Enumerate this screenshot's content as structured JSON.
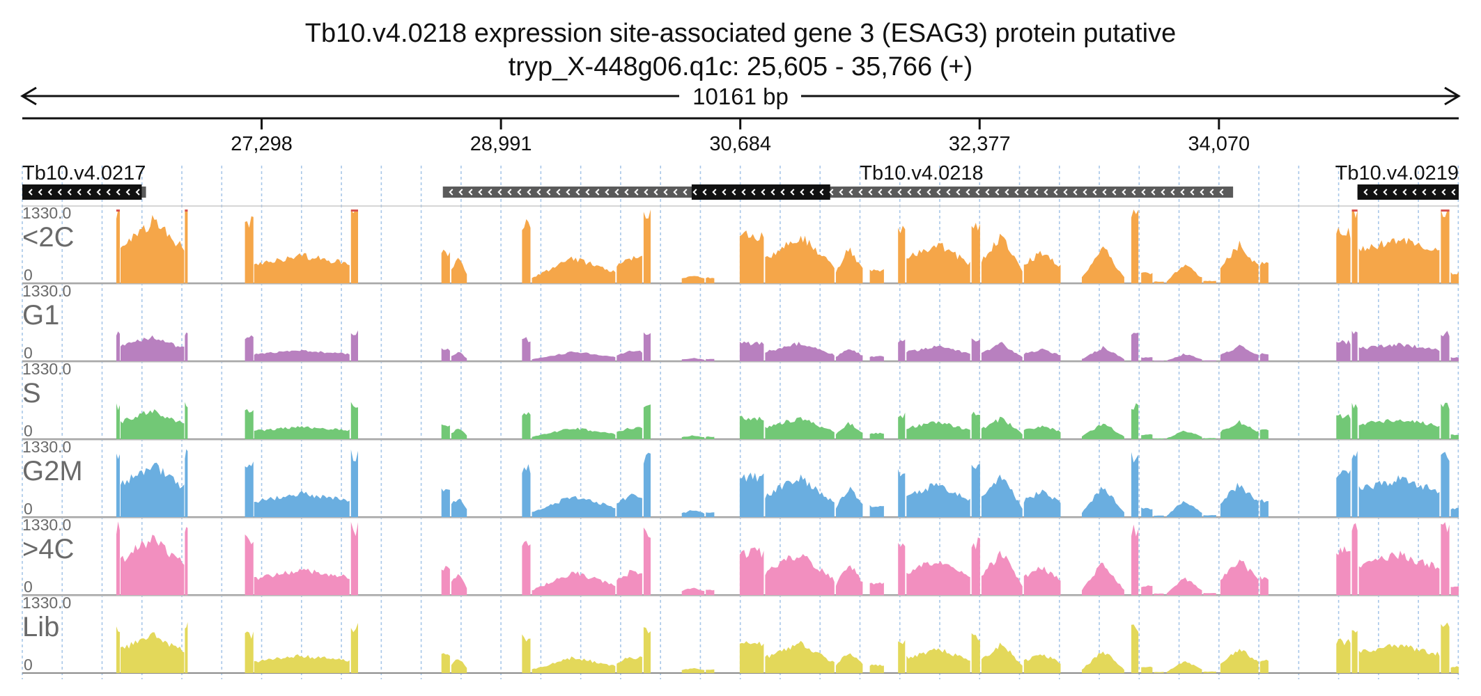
{
  "chart_data": {
    "type": "area",
    "title": "Tb10.v4.0218  expression site-associated gene 3 (ESAG3) protein  putative",
    "subtitle": "tryp_X-448g06.q1c: 25,605 - 35,766 (+)",
    "span_label": "10161 bp",
    "xlim": [
      25605,
      35766
    ],
    "x_ticks": [
      {
        "value": 27298,
        "label": "27,298"
      },
      {
        "value": 28991,
        "label": "28,991"
      },
      {
        "value": 30684,
        "label": "30,684"
      },
      {
        "value": 32377,
        "label": "32,377"
      },
      {
        "value": 34070,
        "label": "34,070"
      }
    ],
    "grid": true,
    "genes": [
      {
        "name": "Tb10.v4.0217",
        "start": 25605,
        "end": 26480,
        "strand": "-",
        "cds": [
          [
            25605,
            26450
          ]
        ]
      },
      {
        "name": "Tb10.v4.0218",
        "start": 28580,
        "end": 34170,
        "strand": "-",
        "cds": [
          [
            30340,
            31320
          ]
        ]
      },
      {
        "name": "Tb10.v4.0219",
        "start": 35050,
        "end": 35766,
        "strand": "-",
        "cds": [
          [
            35050,
            35766
          ]
        ]
      }
    ],
    "ylim": [
      0,
      1330
    ],
    "y_max_label": "1330.0",
    "y_min_label": "0",
    "tracks": [
      {
        "name": "<2C",
        "color": "#f5a649",
        "clip_color": "#d9534f"
      },
      {
        "name": "G1",
        "color": "#b880bf",
        "clip_color": "#d9534f"
      },
      {
        "name": "S",
        "color": "#72c876",
        "clip_color": "#d9534f"
      },
      {
        "name": "G2M",
        "color": "#6aaee0",
        "clip_color": "#d9534f"
      },
      {
        "name": ">4C",
        "color": "#f28fbf",
        "clip_color": "#d9534f"
      },
      {
        "name": "Lib",
        "color": "#e3d85a",
        "clip_color": "#d9534f"
      }
    ],
    "segments": [
      [
        26270,
        26295,
        1330
      ],
      [
        26300,
        26750,
        700,
        1120,
        620
      ],
      [
        26755,
        26775,
        1330
      ],
      [
        27180,
        27240,
        1100
      ],
      [
        27245,
        27920,
        330,
        500,
        350
      ],
      [
        27930,
        27980,
        1330
      ],
      [
        28570,
        28630,
        550
      ],
      [
        28640,
        28750,
        250,
        450,
        150
      ],
      [
        29140,
        29200,
        1030
      ],
      [
        29210,
        29800,
        100,
        450,
        200
      ],
      [
        29810,
        29990,
        300,
        450,
        450
      ],
      [
        30000,
        30050,
        1250
      ],
      [
        30270,
        30430,
        80,
        150,
        80
      ],
      [
        30440,
        30500,
        100
      ],
      [
        30680,
        30850,
        850
      ],
      [
        30860,
        31350,
        450,
        850,
        300
      ],
      [
        31360,
        31550,
        200,
        650,
        250
      ],
      [
        31600,
        31700,
        230
      ],
      [
        31800,
        31850,
        950
      ],
      [
        31860,
        32310,
        450,
        700,
        350
      ],
      [
        32320,
        32380,
        1030
      ],
      [
        32390,
        32680,
        400,
        850,
        200
      ],
      [
        32690,
        32950,
        350,
        550,
        300
      ],
      [
        33100,
        33400,
        100,
        650,
        100
      ],
      [
        33450,
        33500,
        1300
      ],
      [
        33520,
        33600,
        180
      ],
      [
        33610,
        33680,
        30
      ],
      [
        33700,
        33950,
        30,
        350,
        100
      ],
      [
        33960,
        34050,
        40
      ],
      [
        34080,
        34350,
        300,
        700,
        300
      ],
      [
        34360,
        34420,
        350
      ],
      [
        34900,
        35000,
        900
      ],
      [
        35010,
        35050,
        1330
      ],
      [
        35060,
        35630,
        600,
        800,
        550
      ],
      [
        35640,
        35700,
        1330
      ],
      [
        35710,
        35766,
        180
      ]
    ],
    "segment_scale": [
      {
        "track": "<2C",
        "gain": 1.0
      },
      {
        "track": "G1",
        "gain": 0.38
      },
      {
        "track": "S",
        "gain": 0.45
      },
      {
        "track": "G2M",
        "gain": 0.85
      },
      {
        "track": ">4C",
        "gain": 0.9
      },
      {
        "track": "Lib",
        "gain": 0.62
      }
    ]
  }
}
